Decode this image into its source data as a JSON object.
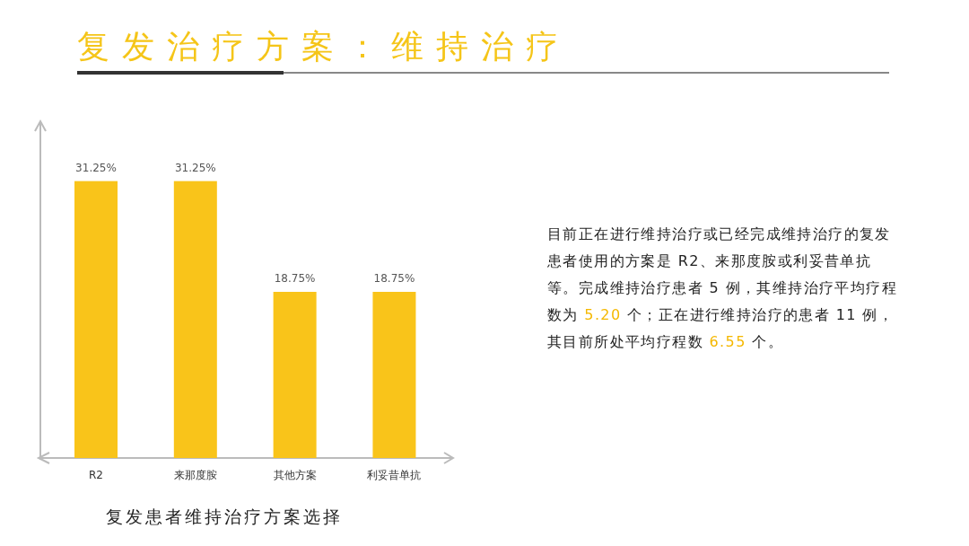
{
  "chart_data": {
    "type": "bar",
    "title": "复发治疗方案：维持治疗",
    "xlabel": "复发患者维持治疗方案选择",
    "categories": [
      "R2",
      "来那度胺",
      "其他方案",
      "利妥昔单抗"
    ],
    "values": [
      31.25,
      31.25,
      18.75,
      18.75
    ],
    "value_labels": [
      "31.25%",
      "31.25%",
      "18.75%",
      "18.75%"
    ],
    "color": "#f9c41a",
    "annotations": [
      "目前正在进行维持治疗或已经完成维持治疗的复发患者使用的方案是 R2、来那度胺或利妥昔单抗等。完成维持治疗患者 5 例，其维持治疗平均疗程数为 5.20 个；正在进行维持治疗的患者 11 例，其目前所处平均疗程数 6.55 个。"
    ]
  }
}
